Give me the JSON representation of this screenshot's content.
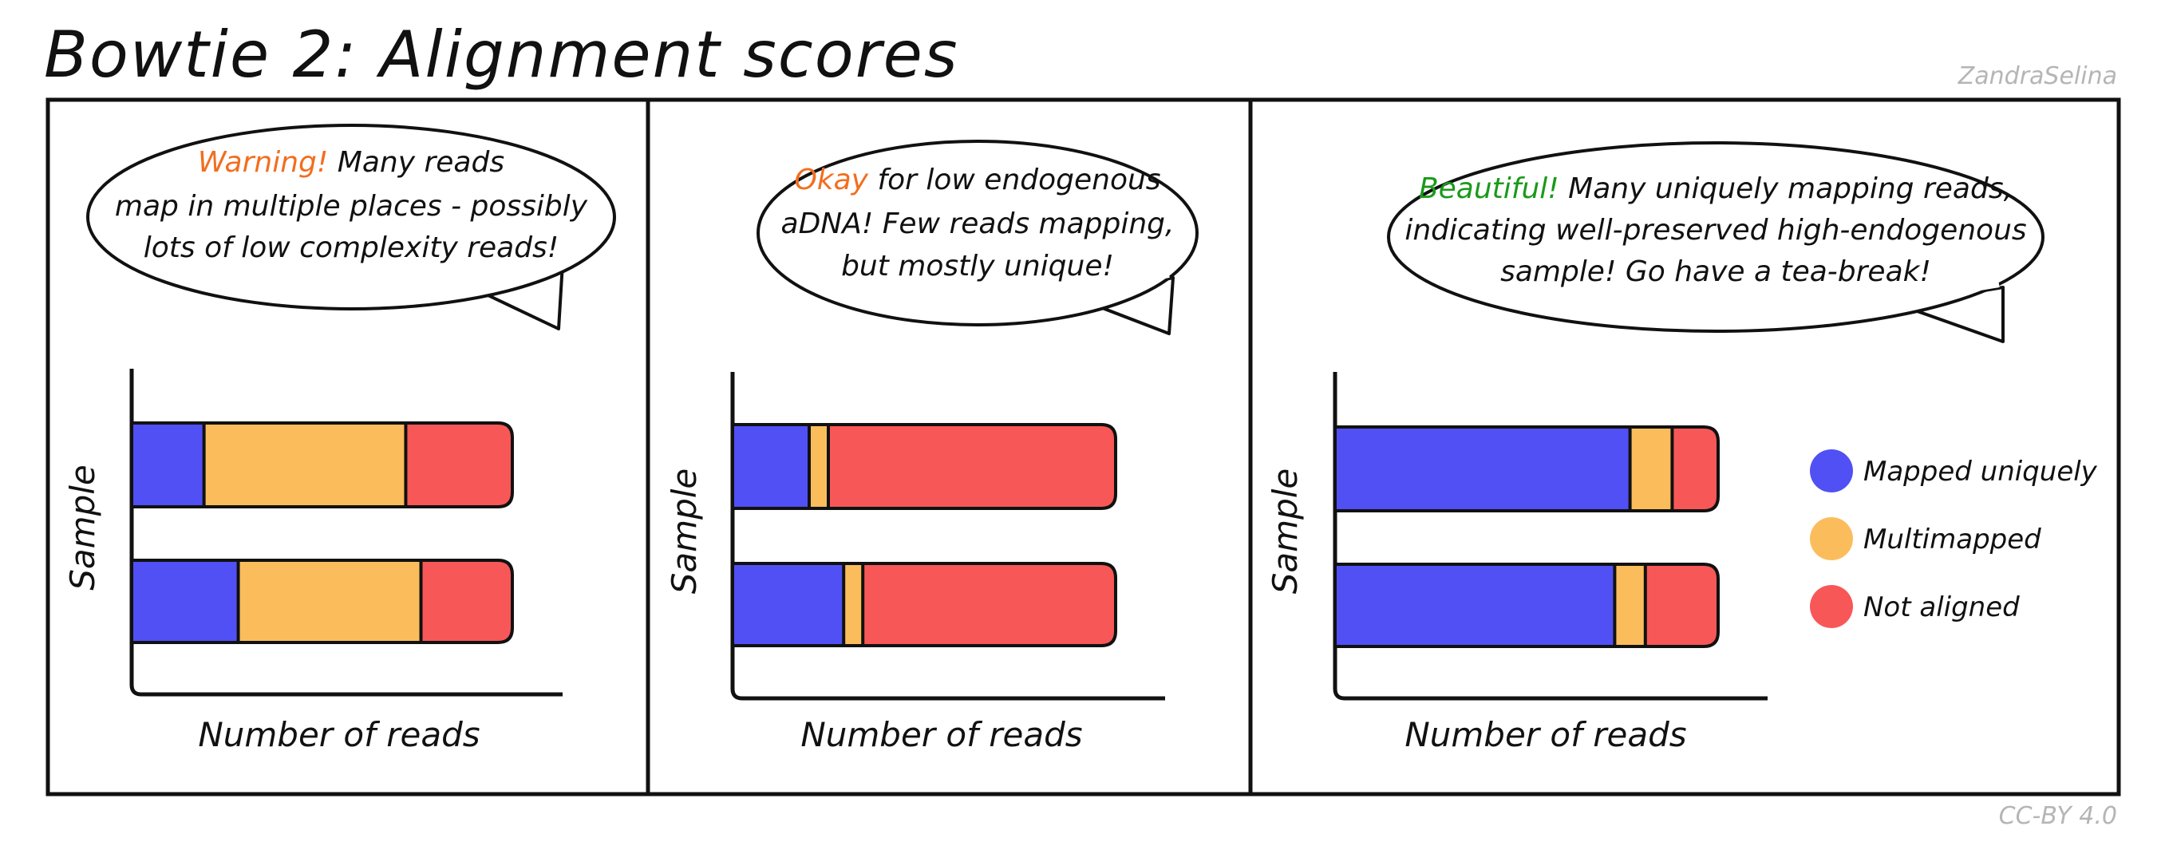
{
  "title": "Bowtie 2: Alignment scores",
  "author": "ZandraSelina",
  "license": "CC-BY 4.0",
  "colors": {
    "mapped_uniquely": "#5050f5",
    "multimapped": "#fbbd5c",
    "not_aligned": "#f85757",
    "warning": "#f26e1f",
    "okay": "#f26e1f",
    "beautiful": "#1a9a1a"
  },
  "legend": [
    {
      "label": "Mapped uniquely",
      "color": "#5050f5"
    },
    {
      "label": "Multimapped",
      "color": "#fbbd5c"
    },
    {
      "label": "Not aligned",
      "color": "#f85757"
    }
  ],
  "panels": [
    {
      "bubble": [
        [
          {
            "text": "Warning!",
            "color": "#f26e1f"
          },
          {
            "text": " Many reads"
          }
        ],
        [
          {
            "text": "map in multiple places - possibly"
          }
        ],
        [
          {
            "text": "lots of low complexity reads!"
          }
        ]
      ]
    },
    {
      "bubble": [
        [
          {
            "text": "Okay",
            "color": "#f26e1f"
          },
          {
            "text": " for low endogenous"
          }
        ],
        [
          {
            "text": "aDNA! Few reads mapping,"
          }
        ],
        [
          {
            "text": "but mostly unique!"
          }
        ]
      ]
    },
    {
      "bubble": [
        [
          {
            "text": "Beautiful!",
            "color": "#1a9a1a"
          },
          {
            "text": " Many uniquely mapping reads,"
          }
        ],
        [
          {
            "text": "indicating well-preserved high-endogenous"
          }
        ],
        [
          {
            "text": "sample! Go have a tea-break!"
          }
        ]
      ]
    }
  ],
  "chart_data": [
    {
      "type": "bar",
      "orientation": "horizontal",
      "stacked": true,
      "xlabel": "Number of reads",
      "ylabel": "Sample",
      "categories": [
        "",
        ""
      ],
      "series": [
        {
          "name": "Mapped uniquely",
          "values": [
            19,
            28
          ]
        },
        {
          "name": "Multimapped",
          "values": [
            53,
            48
          ]
        },
        {
          "name": "Not aligned",
          "values": [
            28,
            24
          ]
        }
      ]
    },
    {
      "type": "bar",
      "orientation": "horizontal",
      "stacked": true,
      "xlabel": "Number of reads",
      "ylabel": "Sample",
      "categories": [
        "",
        ""
      ],
      "series": [
        {
          "name": "Mapped uniquely",
          "values": [
            20,
            29
          ]
        },
        {
          "name": "Multimapped",
          "values": [
            5,
            5
          ]
        },
        {
          "name": "Not aligned",
          "values": [
            75,
            66
          ]
        }
      ]
    },
    {
      "type": "bar",
      "orientation": "horizontal",
      "stacked": true,
      "xlabel": "Number of reads",
      "ylabel": "Sample",
      "categories": [
        "",
        ""
      ],
      "series": [
        {
          "name": "Mapped uniquely",
          "values": [
            77,
            73
          ]
        },
        {
          "name": "Multimapped",
          "values": [
            11,
            8
          ]
        },
        {
          "name": "Not aligned",
          "values": [
            12,
            19
          ]
        }
      ]
    }
  ]
}
